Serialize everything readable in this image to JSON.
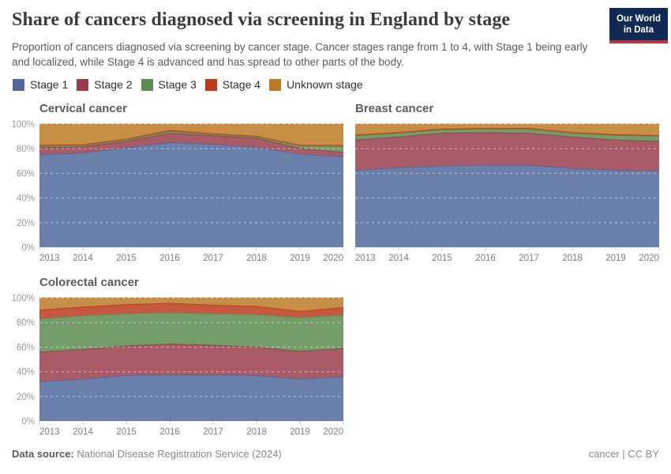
{
  "header": {
    "title": "Share of cancers diagnosed via screening in England by stage",
    "subtitle": "Proportion of cancers diagnosed via screening by cancer stage. Cancer stages range from 1 to 4, with Stage 1 being early and localized, while Stage 4 is advanced and has spread to other parts of the body.",
    "logo": {
      "line1": "Our World",
      "line2": "in Data",
      "bg": "#102A54",
      "accent": "#C5303E"
    }
  },
  "legend": {
    "items": [
      {
        "label": "Stage 1",
        "color": "#50699B"
      },
      {
        "label": "Stage 2",
        "color": "#9A3E4D"
      },
      {
        "label": "Stage 3",
        "color": "#5D8C50"
      },
      {
        "label": "Stage 4",
        "color": "#BC3B20"
      },
      {
        "label": "Unknown stage",
        "color": "#BD7A26"
      }
    ]
  },
  "axes": {
    "y_ticks": [
      "0%",
      "20%",
      "40%",
      "60%",
      "80%",
      "100%"
    ],
    "years": [
      "2013",
      "2014",
      "2015",
      "2016",
      "2017",
      "2018",
      "2019",
      "2020"
    ]
  },
  "chart_data": [
    {
      "type": "area",
      "stacked": true,
      "normalized": true,
      "title": "Cervical cancer",
      "x": [
        "2013",
        "2014",
        "2015",
        "2016",
        "2017",
        "2018",
        "2019",
        "2020"
      ],
      "ylim": [
        0,
        100
      ],
      "unit": "%",
      "grid": true,
      "series": [
        {
          "name": "Stage 1",
          "values": [
            75.0,
            76.5,
            80.8,
            85.0,
            83.5,
            81.0,
            75.6,
            73.5
          ]
        },
        {
          "name": "Stage 2",
          "values": [
            5.8,
            5.0,
            5.0,
            7.5,
            7.0,
            7.5,
            4.5,
            3.5
          ]
        },
        {
          "name": "Stage 3",
          "values": [
            1.2,
            1.0,
            1.2,
            1.5,
            1.0,
            1.0,
            2.0,
            5.0
          ]
        },
        {
          "name": "Stage 4",
          "values": [
            0.7,
            0.7,
            0.7,
            0.8,
            0.6,
            0.6,
            0.6,
            0.7
          ]
        },
        {
          "name": "Unknown stage",
          "values": [
            17.3,
            16.8,
            12.3,
            5.2,
            7.9,
            9.9,
            17.3,
            17.3
          ]
        }
      ]
    },
    {
      "type": "area",
      "stacked": true,
      "normalized": true,
      "title": "Breast cancer",
      "x": [
        "2013",
        "2014",
        "2015",
        "2016",
        "2017",
        "2018",
        "2019",
        "2020"
      ],
      "ylim": [
        0,
        100
      ],
      "unit": "%",
      "grid": true,
      "series": [
        {
          "name": "Stage 1",
          "values": [
            62.5,
            64.5,
            66.0,
            66.5,
            66.5,
            64.0,
            62.5,
            62.0
          ]
        },
        {
          "name": "Stage 2",
          "values": [
            24.5,
            25.0,
            26.5,
            26.5,
            26.0,
            25.5,
            24.5,
            24.0
          ]
        },
        {
          "name": "Stage 3",
          "values": [
            3.5,
            3.0,
            2.8,
            2.8,
            3.3,
            3.0,
            3.8,
            4.0
          ]
        },
        {
          "name": "Stage 4",
          "values": [
            0.6,
            0.6,
            0.6,
            0.6,
            0.6,
            0.6,
            0.6,
            0.6
          ]
        },
        {
          "name": "Unknown stage",
          "values": [
            8.9,
            6.9,
            4.1,
            3.6,
            3.6,
            6.9,
            8.6,
            9.4
          ]
        }
      ]
    },
    {
      "type": "area",
      "stacked": true,
      "normalized": true,
      "title": "Colorectal cancer",
      "x": [
        "2013",
        "2014",
        "2015",
        "2016",
        "2017",
        "2018",
        "2019",
        "2020"
      ],
      "ylim": [
        0,
        100
      ],
      "unit": "%",
      "grid": true,
      "series": [
        {
          "name": "Stage 1",
          "values": [
            32.0,
            34.0,
            37.0,
            37.5,
            37.5,
            37.0,
            34.0,
            36.0
          ]
        },
        {
          "name": "Stage 2",
          "values": [
            24.0,
            24.0,
            24.0,
            25.0,
            24.0,
            23.0,
            22.5,
            23.0
          ]
        },
        {
          "name": "Stage 3",
          "values": [
            27.0,
            27.5,
            26.0,
            25.5,
            25.5,
            26.5,
            27.5,
            27.0
          ]
        },
        {
          "name": "Stage 4",
          "values": [
            7.0,
            7.0,
            7.5,
            7.5,
            7.0,
            6.5,
            5.0,
            6.0
          ]
        },
        {
          "name": "Unknown stage",
          "values": [
            10.0,
            7.5,
            5.5,
            4.5,
            6.0,
            7.0,
            11.0,
            8.0
          ]
        }
      ]
    }
  ],
  "footer": {
    "source_label": "Data source:",
    "source_value": " National Disease Registration Service (2024)",
    "right": "cancer | CC BY"
  }
}
